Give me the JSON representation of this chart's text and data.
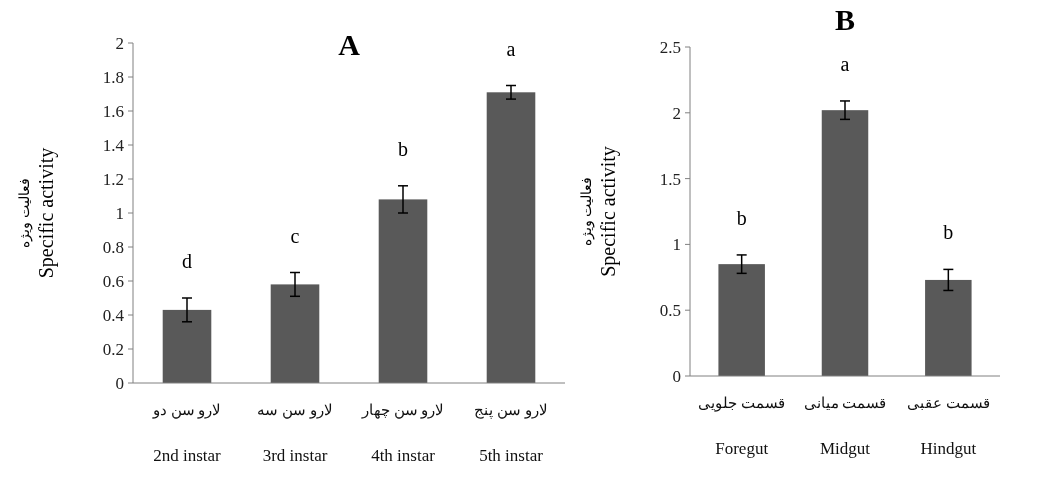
{
  "chart_data": [
    {
      "type": "bar",
      "title": "A",
      "ylabel": "فعالیت ویژه\nSpecific activity",
      "categories": [
        "لارو سن دو\n2nd instar",
        "لارو سن سه\n3rd instar",
        "لارو سن چهار\n4th instar",
        "لارو سن پنج\n5th instar"
      ],
      "values": [
        0.43,
        0.58,
        1.08,
        1.71
      ],
      "errors": [
        0.07,
        0.07,
        0.08,
        0.04
      ],
      "color": "#595959",
      "ylim": [
        0,
        2
      ],
      "yticks": [
        0,
        0.2,
        0.4,
        0.6,
        0.8,
        1,
        1.2,
        1.4,
        1.6,
        1.8,
        2
      ],
      "annotations": [
        "d",
        "c",
        "b",
        "a"
      ]
    },
    {
      "type": "bar",
      "title": "B",
      "ylabel": "فعالیت ویژه\nSpecific activity",
      "categories": [
        "قسمت جلویی\nForegut",
        "قسمت میانی\nMidgut",
        "قسمت عقبی\nHindgut"
      ],
      "values": [
        0.85,
        2.02,
        0.73
      ],
      "errors": [
        0.07,
        0.07,
        0.08
      ],
      "color": "#595959",
      "ylim": [
        0,
        2.5
      ],
      "yticks": [
        0,
        0.5,
        1,
        1.5,
        2,
        2.5
      ],
      "annotations": [
        "b",
        "a",
        "b"
      ]
    }
  ]
}
